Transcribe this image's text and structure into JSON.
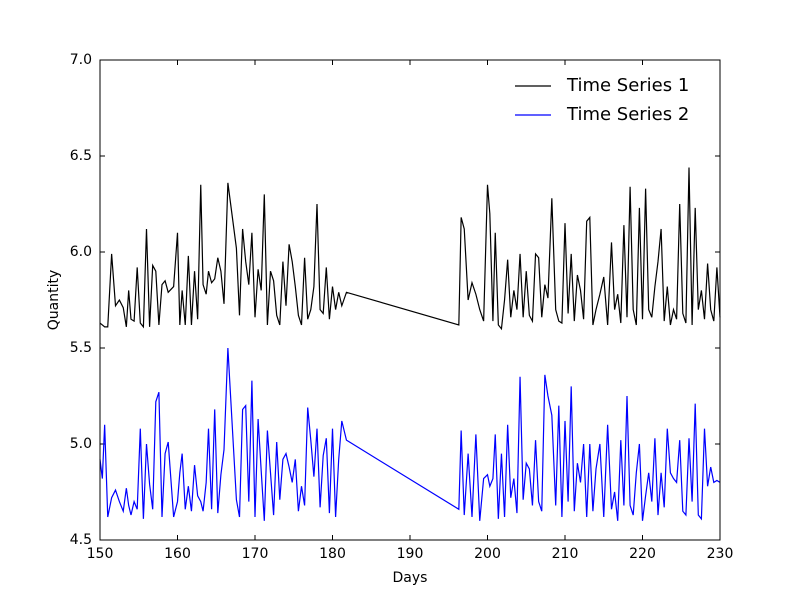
{
  "chart_data": {
    "type": "line",
    "xlabel": "Days",
    "ylabel": "Quantity",
    "xlim": [
      150,
      230
    ],
    "ylim": [
      4.5,
      7.0
    ],
    "xticks": [
      150,
      160,
      170,
      180,
      190,
      200,
      210,
      220,
      230
    ],
    "yticks": [
      {
        "value": 4.5,
        "label": "4.5"
      },
      {
        "value": 5.0,
        "label": "5.0"
      },
      {
        "value": 5.5,
        "label": "5.5"
      },
      {
        "value": 6.0,
        "label": "6.0"
      },
      {
        "value": 6.5,
        "label": "6.5"
      },
      {
        "value": 7.0,
        "label": "7.0"
      }
    ],
    "legend": "upper right",
    "x": [
      150,
      150.3,
      150.6,
      151,
      151.5,
      152,
      152.5,
      153,
      153.4,
      153.7,
      154,
      154.4,
      154.8,
      155.2,
      155.6,
      156,
      156.4,
      156.8,
      157.2,
      157.6,
      158,
      158.4,
      158.8,
      159.5,
      160,
      160.3,
      160.6,
      161,
      161.4,
      161.8,
      162.2,
      162.6,
      163,
      163.3,
      163.7,
      164,
      164.4,
      164.8,
      165.2,
      165.6,
      166,
      166.5,
      167.6,
      168,
      168.4,
      168.8,
      169.2,
      169.6,
      170,
      170.4,
      170.8,
      171.2,
      171.6,
      172,
      172.4,
      172.8,
      173.2,
      173.6,
      174,
      174.4,
      174.8,
      175.2,
      175.6,
      176,
      176.4,
      176.8,
      177.2,
      177.6,
      178,
      178.4,
      178.8,
      179.2,
      179.6,
      180,
      180.4,
      180.8,
      181.2,
      181.8,
      196.3,
      196.6,
      197,
      197.5,
      198,
      198.5,
      199,
      199.5,
      200,
      200.3,
      200.7,
      201,
      201.4,
      201.8,
      202.2,
      202.6,
      203,
      203.4,
      203.8,
      204.2,
      204.6,
      205,
      205.4,
      205.8,
      206.2,
      206.6,
      207,
      207.4,
      207.8,
      208.3,
      208.8,
      209.2,
      209.6,
      210,
      210.4,
      210.8,
      211.2,
      211.6,
      212,
      212.4,
      212.8,
      213.2,
      213.6,
      214,
      214.5,
      215,
      215.5,
      216,
      216.4,
      216.8,
      217.2,
      217.6,
      218,
      218.4,
      218.8,
      219.2,
      219.6,
      220,
      220.4,
      220.8,
      221.2,
      221.6,
      222,
      222.4,
      222.8,
      223.2,
      223.6,
      224,
      224.4,
      224.8,
      225.2,
      225.6,
      226,
      226.4,
      226.8,
      227.2,
      227.6,
      228,
      228.4,
      228.8,
      229.2,
      229.6,
      230
    ],
    "series": [
      {
        "name": "Time Series 1",
        "color": "#000000",
        "values": [
          5.63,
          5.62,
          5.61,
          5.61,
          5.99,
          5.72,
          5.75,
          5.71,
          5.61,
          5.8,
          5.65,
          5.64,
          5.92,
          5.63,
          5.61,
          6.12,
          5.61,
          5.93,
          5.9,
          5.62,
          5.83,
          5.85,
          5.79,
          5.82,
          6.1,
          5.62,
          5.8,
          5.62,
          5.98,
          5.62,
          5.9,
          5.65,
          6.35,
          5.83,
          5.78,
          5.9,
          5.84,
          5.86,
          5.97,
          5.9,
          5.73,
          6.36,
          6.02,
          5.67,
          6.12,
          5.95,
          5.83,
          6.1,
          5.66,
          5.91,
          5.8,
          6.3,
          5.62,
          5.9,
          5.85,
          5.67,
          5.62,
          5.95,
          5.72,
          6.04,
          5.95,
          5.82,
          5.67,
          5.62,
          5.97,
          5.65,
          5.7,
          5.82,
          6.25,
          5.7,
          5.68,
          5.92,
          5.65,
          5.82,
          5.7,
          5.79,
          5.72,
          5.79,
          5.62,
          6.18,
          6.12,
          5.75,
          5.84,
          5.78,
          5.7,
          5.64,
          6.35,
          6.2,
          5.64,
          6.1,
          5.62,
          5.6,
          5.75,
          5.96,
          5.66,
          5.8,
          5.7,
          5.99,
          5.66,
          5.9,
          5.67,
          5.64,
          5.99,
          5.97,
          5.66,
          5.83,
          5.76,
          6.28,
          5.7,
          5.64,
          5.63,
          6.15,
          5.68,
          5.99,
          5.64,
          5.88,
          5.8,
          5.65,
          6.16,
          6.18,
          5.62,
          5.7,
          5.78,
          5.87,
          5.62,
          6.05,
          5.7,
          5.78,
          5.63,
          6.14,
          5.66,
          6.34,
          5.7,
          5.62,
          6.23,
          5.65,
          6.33,
          5.7,
          5.66,
          5.82,
          5.95,
          6.12,
          5.64,
          5.82,
          5.62,
          5.7,
          5.65,
          6.25,
          5.68,
          5.63,
          6.44,
          5.62,
          6.23,
          5.7,
          5.8,
          5.65,
          5.94,
          5.7,
          5.64,
          5.92,
          5.66
        ]
      },
      {
        "name": "Time Series 2",
        "color": "#0000ff",
        "values": [
          4.92,
          4.82,
          5.1,
          4.62,
          4.72,
          4.76,
          4.7,
          4.65,
          4.77,
          4.68,
          4.63,
          4.7,
          4.66,
          5.08,
          4.61,
          5.0,
          4.79,
          4.66,
          5.22,
          5.27,
          4.62,
          4.95,
          5.01,
          4.62,
          4.7,
          4.85,
          4.95,
          4.66,
          4.78,
          4.65,
          4.89,
          4.73,
          4.7,
          4.65,
          4.8,
          5.08,
          4.66,
          5.18,
          4.64,
          4.84,
          4.97,
          5.5,
          4.71,
          4.62,
          5.18,
          5.2,
          4.7,
          5.33,
          4.62,
          5.13,
          4.86,
          4.6,
          5.07,
          4.85,
          4.63,
          5.01,
          4.71,
          4.92,
          4.95,
          4.88,
          4.8,
          4.92,
          4.65,
          4.78,
          4.68,
          5.19,
          5.02,
          4.83,
          5.08,
          4.67,
          4.94,
          5.03,
          4.64,
          5.08,
          4.62,
          4.92,
          5.12,
          5.02,
          4.66,
          5.07,
          4.63,
          4.95,
          4.62,
          5.05,
          4.6,
          4.82,
          4.84,
          4.78,
          4.82,
          5.05,
          4.61,
          4.95,
          4.62,
          5.1,
          4.72,
          4.82,
          4.64,
          5.35,
          4.71,
          4.9,
          4.87,
          4.68,
          5.02,
          4.7,
          4.65,
          5.36,
          5.25,
          5.15,
          4.68,
          5.2,
          4.62,
          5.12,
          4.7,
          5.3,
          4.65,
          4.9,
          4.8,
          5.0,
          4.62,
          5.0,
          4.65,
          4.87,
          5.0,
          4.62,
          5.1,
          4.66,
          4.75,
          4.6,
          5.02,
          4.68,
          5.25,
          4.68,
          4.63,
          4.85,
          5.0,
          4.6,
          4.73,
          4.85,
          4.7,
          5.03,
          4.63,
          4.85,
          4.67,
          5.08,
          4.85,
          4.82,
          4.8,
          5.02,
          4.65,
          4.63,
          5.03,
          4.7,
          5.21,
          4.63,
          4.61,
          5.08,
          4.78,
          4.88,
          4.8,
          4.81,
          4.8
        ]
      }
    ]
  }
}
